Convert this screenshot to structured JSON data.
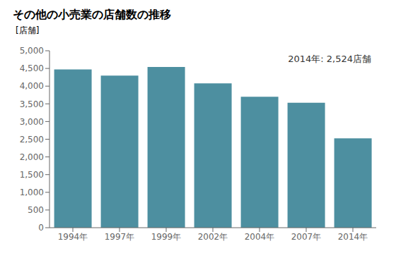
{
  "chart_data": {
    "type": "bar",
    "title": "その他の小売業の店舗数の推移",
    "ylabel": "[店舗]",
    "annotation": "2014年: 2,524店舗",
    "categories": [
      "1994年",
      "1997年",
      "1999年",
      "2002年",
      "2004年",
      "2007年",
      "2014年"
    ],
    "values": [
      4470,
      4300,
      4540,
      4080,
      3700,
      3530,
      2524
    ],
    "color": "#4d8fa0",
    "ylim": [
      0,
      5000
    ],
    "yticks": [
      0,
      500,
      {
        "value": 1000,
        "label": "1,000"
      },
      {
        "value": 1500,
        "label": "1,500"
      },
      {
        "value": 2000,
        "label": "2,000"
      },
      {
        "value": 2500,
        "label": "2,500"
      },
      {
        "value": 3000,
        "label": "3,000"
      },
      {
        "value": 3500,
        "label": "3,500"
      },
      {
        "value": 4000,
        "label": "4,000"
      },
      {
        "value": 4500,
        "label": "4,500"
      },
      {
        "value": 5000,
        "label": "5,000"
      }
    ],
    "grid": false
  }
}
